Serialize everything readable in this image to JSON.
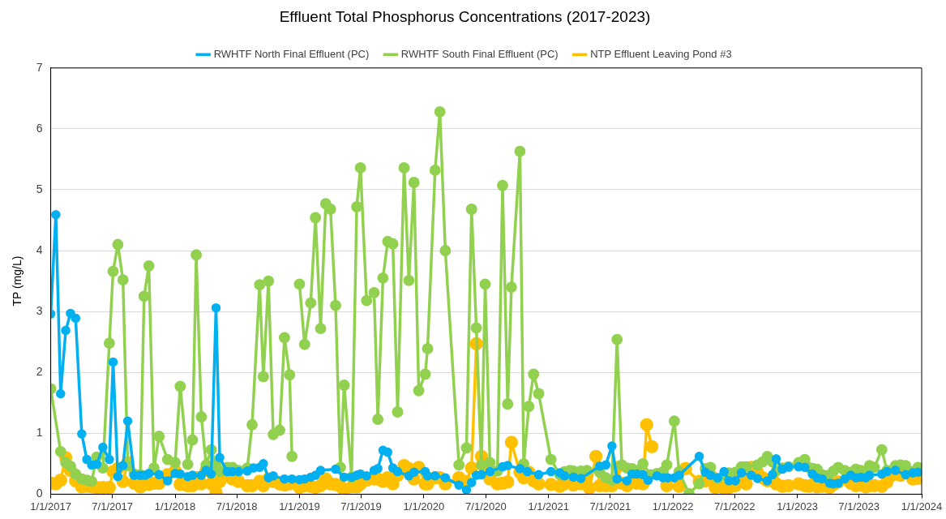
{
  "chart_data": {
    "type": "line",
    "title": "Effluent Total Phosphorus Concentrations (2017-2023)",
    "ylabel": "TP (mg/L)",
    "xlim": [
      "2017-01-01",
      "2024-01-01"
    ],
    "xticks": [
      {
        "value": "2017-01-01",
        "label": "1/1/2017"
      },
      {
        "value": "2017-07-01",
        "label": "7/1/2017"
      },
      {
        "value": "2018-01-01",
        "label": "1/1/2018"
      },
      {
        "value": "2018-07-01",
        "label": "7/1/2018"
      },
      {
        "value": "2019-01-01",
        "label": "1/1/2019"
      },
      {
        "value": "2019-07-01",
        "label": "7/1/2019"
      },
      {
        "value": "2020-01-01",
        "label": "1/1/2020"
      },
      {
        "value": "2020-07-01",
        "label": "7/1/2020"
      },
      {
        "value": "2021-01-01",
        "label": "1/1/2021"
      },
      {
        "value": "2021-07-01",
        "label": "7/1/2021"
      },
      {
        "value": "2022-01-01",
        "label": "1/1/2022"
      },
      {
        "value": "2022-07-01",
        "label": "7/1/2022"
      },
      {
        "value": "2023-01-01",
        "label": "1/1/2023"
      },
      {
        "value": "2023-07-01",
        "label": "7/1/2023"
      },
      {
        "value": "2024-01-01",
        "label": "1/1/2024"
      }
    ],
    "ylim": [
      0,
      7
    ],
    "yticks": [
      0,
      1,
      2,
      3,
      4,
      5,
      6,
      7
    ],
    "grid": "y",
    "legend": "top",
    "marker": "circle",
    "line_style": "solid",
    "series": [
      {
        "name": "RWHTF North Final Effluent (PC)",
        "color": "#00b0f0",
        "x": [
          "2017-01-01",
          "2017-01-16",
          "2017-01-30",
          "2017-02-14",
          "2017-02-28",
          "2017-03-15",
          "2017-04-02",
          "2017-04-17",
          "2017-05-01",
          "2017-05-16",
          "2017-06-03",
          "2017-06-22",
          "2017-07-03",
          "2017-07-17",
          "2017-08-01",
          "2017-08-15",
          "2017-09-03",
          "2017-09-21",
          "2017-10-05",
          "2017-10-16",
          "2017-11-15",
          "2017-12-10",
          "2018-01-01",
          "2018-01-16",
          "2018-02-07",
          "2018-02-21",
          "2018-03-19",
          "2018-04-02",
          "2018-04-17",
          "2018-05-01",
          "2018-05-12",
          "2018-06-03",
          "2018-06-18",
          "2018-07-06",
          "2018-08-01",
          "2018-08-19",
          "2018-09-06",
          "2018-09-17",
          "2018-10-02",
          "2018-10-16",
          "2018-11-18",
          "2018-12-10",
          "2019-01-01",
          "2019-01-16",
          "2019-02-03",
          "2019-02-17",
          "2019-03-04",
          "2019-04-17",
          "2019-05-12",
          "2019-06-03",
          "2019-06-18",
          "2019-06-29",
          "2019-07-17",
          "2019-08-08",
          "2019-08-19",
          "2019-09-03",
          "2019-09-17",
          "2019-10-02",
          "2019-10-16",
          "2019-11-18",
          "2019-12-03",
          "2020-01-05",
          "2020-01-12",
          "2020-02-03",
          "2020-03-04",
          "2020-04-13",
          "2020-05-05",
          "2020-05-20",
          "2020-06-03",
          "2020-06-18",
          "2020-07-13",
          "2020-08-19",
          "2020-09-03",
          "2020-10-09",
          "2020-10-31",
          "2020-12-03",
          "2021-01-08",
          "2021-02-03",
          "2021-02-17",
          "2021-03-15",
          "2021-04-06",
          "2021-05-31",
          "2021-06-18",
          "2021-07-06",
          "2021-07-21",
          "2021-08-19",
          "2021-09-03",
          "2021-09-17",
          "2021-10-05",
          "2021-10-20",
          "2021-11-15",
          "2021-12-03",
          "2021-12-17",
          "2022-01-05",
          "2022-01-19",
          "2022-03-19",
          "2022-04-06",
          "2022-04-21",
          "2022-05-12",
          "2022-05-31",
          "2022-06-14",
          "2022-07-03",
          "2022-07-21",
          "2022-08-19",
          "2022-09-06",
          "2022-10-05",
          "2022-10-20",
          "2022-10-31",
          "2022-11-18",
          "2022-12-06",
          "2023-01-05",
          "2023-01-23",
          "2023-02-14",
          "2023-02-28",
          "2023-03-15",
          "2023-04-06",
          "2023-04-17",
          "2023-05-01",
          "2023-05-20",
          "2023-06-07",
          "2023-06-22",
          "2023-07-06",
          "2023-07-21",
          "2023-08-01",
          "2023-09-06",
          "2023-09-21",
          "2023-10-16",
          "2023-11-15",
          "2023-12-06",
          "2023-12-21"
        ],
        "values": [
          2.96,
          4.59,
          1.65,
          2.69,
          2.97,
          2.89,
          0.99,
          0.57,
          0.48,
          0.49,
          0.77,
          0.57,
          2.17,
          0.29,
          0.47,
          1.2,
          0.31,
          0.31,
          0.31,
          0.34,
          0.32,
          0.22,
          0.34,
          0.33,
          0.29,
          0.31,
          0.31,
          0.39,
          0.33,
          3.06,
          0.6,
          0.37,
          0.37,
          0.37,
          0.38,
          0.43,
          0.44,
          0.5,
          0.27,
          0.3,
          0.25,
          0.25,
          0.24,
          0.25,
          0.28,
          0.31,
          0.39,
          0.41,
          0.28,
          0.28,
          0.31,
          0.33,
          0.3,
          0.39,
          0.42,
          0.72,
          0.69,
          0.43,
          0.37,
          0.3,
          0.36,
          0.37,
          0.3,
          0.3,
          0.27,
          0.15,
          0.07,
          0.19,
          0.31,
          0.32,
          0.37,
          0.45,
          0.47,
          0.42,
          0.37,
          0.32,
          0.37,
          0.35,
          0.3,
          0.28,
          0.26,
          0.46,
          0.48,
          0.79,
          0.25,
          0.22,
          0.33,
          0.33,
          0.32,
          0.23,
          0.3,
          0.27,
          0.27,
          0.27,
          0.31,
          0.62,
          0.36,
          0.31,
          0.27,
          0.37,
          0.22,
          0.22,
          0.35,
          0.31,
          0.26,
          0.22,
          0.32,
          0.58,
          0.41,
          0.45,
          0.45,
          0.44,
          0.33,
          0.27,
          0.25,
          0.18,
          0.17,
          0.18,
          0.25,
          0.31,
          0.27,
          0.28,
          0.27,
          0.31,
          0.33,
          0.37,
          0.39,
          0.32,
          0.35,
          0.36
        ]
      },
      {
        "name": "RWHTF South Final Effluent (PC)",
        "color": "#92d050",
        "x": [
          "2017-01-01",
          "2017-01-30",
          "2017-02-14",
          "2017-02-28",
          "2017-03-15",
          "2017-04-02",
          "2017-04-17",
          "2017-05-01",
          "2017-05-16",
          "2017-06-03",
          "2017-06-22",
          "2017-07-03",
          "2017-07-17",
          "2017-08-01",
          "2017-08-15",
          "2017-09-03",
          "2017-09-21",
          "2017-10-02",
          "2017-10-16",
          "2017-10-31",
          "2017-11-15",
          "2017-12-10",
          "2018-01-01",
          "2018-01-16",
          "2018-02-07",
          "2018-02-21",
          "2018-03-04",
          "2018-03-19",
          "2018-04-02",
          "2018-04-17",
          "2018-05-01",
          "2018-05-12",
          "2018-06-03",
          "2018-06-18",
          "2018-07-06",
          "2018-08-01",
          "2018-08-15",
          "2018-09-06",
          "2018-09-17",
          "2018-10-02",
          "2018-10-16",
          "2018-11-04",
          "2018-11-18",
          "2018-12-03",
          "2018-12-10",
          "2018-12-21",
          "2019-01-01",
          "2019-01-16",
          "2019-02-03",
          "2019-02-17",
          "2019-03-04",
          "2019-03-19",
          "2019-04-02",
          "2019-04-17",
          "2019-05-01",
          "2019-05-12",
          "2019-06-03",
          "2019-06-18",
          "2019-06-29",
          "2019-07-17",
          "2019-08-08",
          "2019-08-19",
          "2019-09-03",
          "2019-09-17",
          "2019-10-02",
          "2019-10-16",
          "2019-11-04",
          "2019-11-18",
          "2019-12-03",
          "2019-12-17",
          "2020-01-05",
          "2020-01-12",
          "2020-02-03",
          "2020-02-17",
          "2020-03-04",
          "2020-04-13",
          "2020-05-05",
          "2020-05-20",
          "2020-06-03",
          "2020-06-18",
          "2020-06-29",
          "2020-07-13",
          "2020-08-04",
          "2020-08-19",
          "2020-09-03",
          "2020-09-14",
          "2020-10-09",
          "2020-10-20",
          "2020-11-04",
          "2020-11-18",
          "2020-12-03",
          "2021-01-08",
          "2021-02-03",
          "2021-02-17",
          "2021-03-04",
          "2021-03-15",
          "2021-04-06",
          "2021-04-24",
          "2021-05-31",
          "2021-06-18",
          "2021-07-06",
          "2021-07-21",
          "2021-08-04",
          "2021-08-19",
          "2021-09-03",
          "2021-09-17",
          "2021-10-05",
          "2021-10-27",
          "2021-11-15",
          "2021-12-03",
          "2021-12-14",
          "2022-01-05",
          "2022-01-19",
          "2022-02-17",
          "2022-03-19",
          "2022-04-06",
          "2022-04-21",
          "2022-05-12",
          "2022-05-31",
          "2022-06-14",
          "2022-07-03",
          "2022-07-21",
          "2022-08-04",
          "2022-09-06",
          "2022-09-21",
          "2022-10-05",
          "2022-10-20",
          "2022-10-31",
          "2022-11-18",
          "2022-12-06",
          "2023-01-05",
          "2023-01-23",
          "2023-02-03",
          "2023-02-17",
          "2023-02-28",
          "2023-03-15",
          "2023-04-02",
          "2023-04-17",
          "2023-05-01",
          "2023-05-20",
          "2023-06-07",
          "2023-06-22",
          "2023-07-06",
          "2023-07-21",
          "2023-08-01",
          "2023-08-15",
          "2023-09-06",
          "2023-09-21",
          "2023-10-16",
          "2023-10-31",
          "2023-11-15",
          "2023-12-06",
          "2023-12-21"
        ],
        "values": [
          1.73,
          0.7,
          0.52,
          0.46,
          0.33,
          0.25,
          0.23,
          0.21,
          0.61,
          0.43,
          2.48,
          3.66,
          4.1,
          3.52,
          0.47,
          0.33,
          0.32,
          3.25,
          3.75,
          0.43,
          0.95,
          0.57,
          0.52,
          1.77,
          0.49,
          0.89,
          3.93,
          1.27,
          0.48,
          0.73,
          0.48,
          0.37,
          0.44,
          0.44,
          0.39,
          0.43,
          1.14,
          3.44,
          1.93,
          3.5,
          0.98,
          1.05,
          2.57,
          1.96,
          0.62,
          null,
          3.45,
          2.46,
          3.14,
          4.54,
          2.72,
          4.77,
          4.68,
          3.1,
          0.44,
          1.79,
          0.28,
          4.72,
          5.36,
          3.18,
          3.31,
          1.23,
          3.55,
          4.15,
          4.11,
          1.35,
          5.36,
          3.51,
          5.12,
          1.7,
          1.97,
          2.39,
          5.32,
          6.28,
          4.0,
          0.48,
          0.76,
          4.68,
          2.73,
          0.48,
          3.45,
          0.52,
          0.38,
          5.07,
          1.48,
          3.4,
          5.63,
          0.5,
          1.44,
          1.97,
          1.65,
          0.57,
          0.32,
          0.37,
          0.39,
          0.38,
          0.38,
          0.39,
          0.36,
          0.27,
          0.23,
          2.54,
          0.48,
          0.43,
          0.42,
          0.39,
          0.5,
          0.32,
          0.34,
          0.37,
          0.48,
          1.2,
          0.37,
          0.01,
          0.17,
          0.42,
          0.44,
          0.26,
          0.31,
          0.35,
          0.36,
          0.45,
          0.45,
          0.48,
          0.53,
          0.62,
          0.53,
          0.38,
          0.43,
          0.45,
          0.52,
          0.57,
          0.44,
          0.42,
          0.41,
          0.32,
          0.31,
          0.38,
          0.44,
          0.39,
          0.36,
          0.41,
          0.39,
          0.37,
          0.47,
          0.44,
          0.73,
          0.39,
          0.47,
          0.48,
          0.47,
          0.37,
          0.44
        ]
      },
      {
        "name": "NTP Effluent Leaving Pond #3",
        "color": "#ffc000",
        "x": [
          "2017-01-01",
          "2017-01-16",
          "2017-01-30",
          "2017-02-14",
          "2017-02-28",
          "2017-03-15",
          "2017-04-02",
          "2017-04-17",
          "2017-05-01",
          "2017-05-16",
          "2017-06-03",
          "2017-06-22",
          "2017-07-03",
          "2017-07-17",
          "2017-08-01",
          "2017-08-15",
          "2017-09-03",
          "2017-09-21",
          "2017-10-05",
          "2017-10-16",
          "2017-10-31",
          "2017-11-15",
          "2017-12-10",
          "2018-01-01",
          "2018-01-16",
          "2018-02-07",
          "2018-02-21",
          "2018-03-04",
          "2018-03-19",
          "2018-04-02",
          "2018-04-17",
          "2018-05-01",
          "2018-05-12",
          "2018-06-03",
          "2018-06-18",
          "2018-07-06",
          "2018-08-01",
          "2018-08-15",
          "2018-09-06",
          "2018-09-17",
          "2018-10-02",
          "2018-10-16",
          "2018-11-04",
          "2018-11-18",
          "2018-12-03",
          "2018-12-17",
          "2019-01-01",
          "2019-01-16",
          "2019-02-03",
          "2019-02-17",
          "2019-03-04",
          "2019-03-19",
          "2019-04-02",
          "2019-04-17",
          "2019-05-01",
          "2019-05-12",
          "2019-06-03",
          "2019-06-18",
          "2019-06-29",
          "2019-07-17",
          "2019-08-08",
          "2019-08-19",
          "2019-09-03",
          "2019-09-17",
          "2019-10-02",
          "2019-10-16",
          "2019-11-04",
          "2019-11-18",
          "2019-12-03",
          "2019-12-17",
          "2020-01-05",
          "2020-01-12",
          "2020-02-03",
          "2020-02-17",
          "2020-03-04",
          "2020-04-13",
          "2020-05-05",
          "2020-05-20",
          "2020-06-03",
          "2020-06-18",
          "2020-06-29",
          "2020-07-13",
          "2020-08-04",
          "2020-08-19",
          "2020-09-03",
          "2020-09-14",
          "2020-10-09",
          "2020-10-20",
          "2020-11-04",
          "2020-11-18",
          "2020-12-03",
          "2021-01-08",
          "2021-02-03",
          "2021-02-17",
          "2021-03-04",
          "2021-03-15",
          "2021-04-06",
          "2021-04-24",
          "2021-05-01",
          "2021-05-20",
          "2021-05-31",
          "2021-06-18",
          "2021-07-06",
          "2021-07-21",
          "2021-08-04",
          "2021-08-19",
          "2021-09-03",
          "2021-09-17",
          "2021-10-05",
          "2021-10-16",
          "2021-10-31",
          "2021-11-22",
          "2021-12-14",
          "2022-01-01",
          "2022-01-19",
          "2022-02-07",
          "2022-03-19",
          "2022-04-06",
          "2022-04-21",
          "2022-05-05",
          "2022-05-16",
          "2022-05-31",
          "2022-06-14",
          "2022-07-03",
          "2022-07-21",
          "2022-08-04",
          "2022-08-19",
          "2022-09-06",
          "2022-09-21",
          "2022-10-05",
          "2022-10-20",
          "2022-10-31",
          "2022-11-18",
          "2022-12-06",
          "2023-01-05",
          "2023-01-23",
          "2023-02-03",
          "2023-02-17",
          "2023-02-28",
          "2023-03-15",
          "2023-04-06",
          "2023-04-17",
          "2023-05-01",
          "2023-06-07",
          "2023-06-22",
          "2023-07-06",
          "2023-07-21",
          "2023-08-01",
          "2023-08-15",
          "2023-09-06",
          "2023-09-21",
          "2023-10-05",
          "2023-10-16",
          "2023-10-31",
          "2023-11-15",
          "2023-12-06",
          "2023-12-21"
        ],
        "values": [
          0.18,
          0.17,
          0.23,
          0.6,
          0.39,
          0.22,
          0.12,
          0.13,
          0.12,
          0.11,
          0.11,
          0.11,
          0.37,
          0.42,
          0.21,
          0.52,
          0.18,
          0.12,
          0.18,
          0.16,
          0.18,
          0.18,
          0.32,
          0.38,
          0.16,
          0.14,
          0.14,
          0.27,
          0.17,
          0.39,
          0.17,
          0.03,
          0.21,
          0.3,
          0.25,
          0.21,
          0.14,
          0.14,
          0.21,
          0.14,
          0.25,
          0.21,
          0.17,
          0.15,
          0.17,
          0.18,
          0.11,
          0.14,
          0.13,
          0.11,
          0.14,
          0.25,
          0.17,
          0.16,
          0.13,
          0.07,
          0.12,
          0.12,
          0.17,
          0.23,
          0.25,
          0.25,
          0.21,
          0.27,
          0.17,
          0.31,
          0.47,
          0.42,
          0.25,
          0.44,
          0.17,
          0.17,
          0.27,
          0.27,
          0.17,
          0.27,
          0.21,
          0.43,
          2.47,
          0.62,
          0.36,
          0.25,
          0.17,
          0.18,
          0.2,
          0.85,
          0.36,
          0.27,
          0.36,
          0.22,
          0.17,
          0.16,
          0.13,
          0.17,
          0.27,
          0.15,
          0.17,
          0.31,
          0.1,
          0.62,
          0.14,
          0.14,
          0.14,
          0.44,
          0.18,
          0.14,
          0.23,
          0.18,
          0.17,
          1.14,
          0.78,
          null,
          0.14,
          null,
          0.13,
          0.42,
          0.21,
          0.22,
          0.31,
          0.11,
          0.13,
          0.1,
          0.11,
          0.14,
          0.25,
          0.17,
          0.44,
          0.36,
          0.27,
          0.22,
          0.25,
          0.17,
          0.13,
          0.14,
          0.17,
          0.14,
          0.13,
          0.16,
          0.12,
          0.13,
          0.11,
          0.16,
          0.2,
          0.18,
          0.14,
          0.15,
          0.12,
          0.14,
          0.14,
          0.13,
          0.2,
          0.31,
          0.39,
          0.31,
          0.36,
          0.25,
          0.26
        ]
      }
    ]
  }
}
